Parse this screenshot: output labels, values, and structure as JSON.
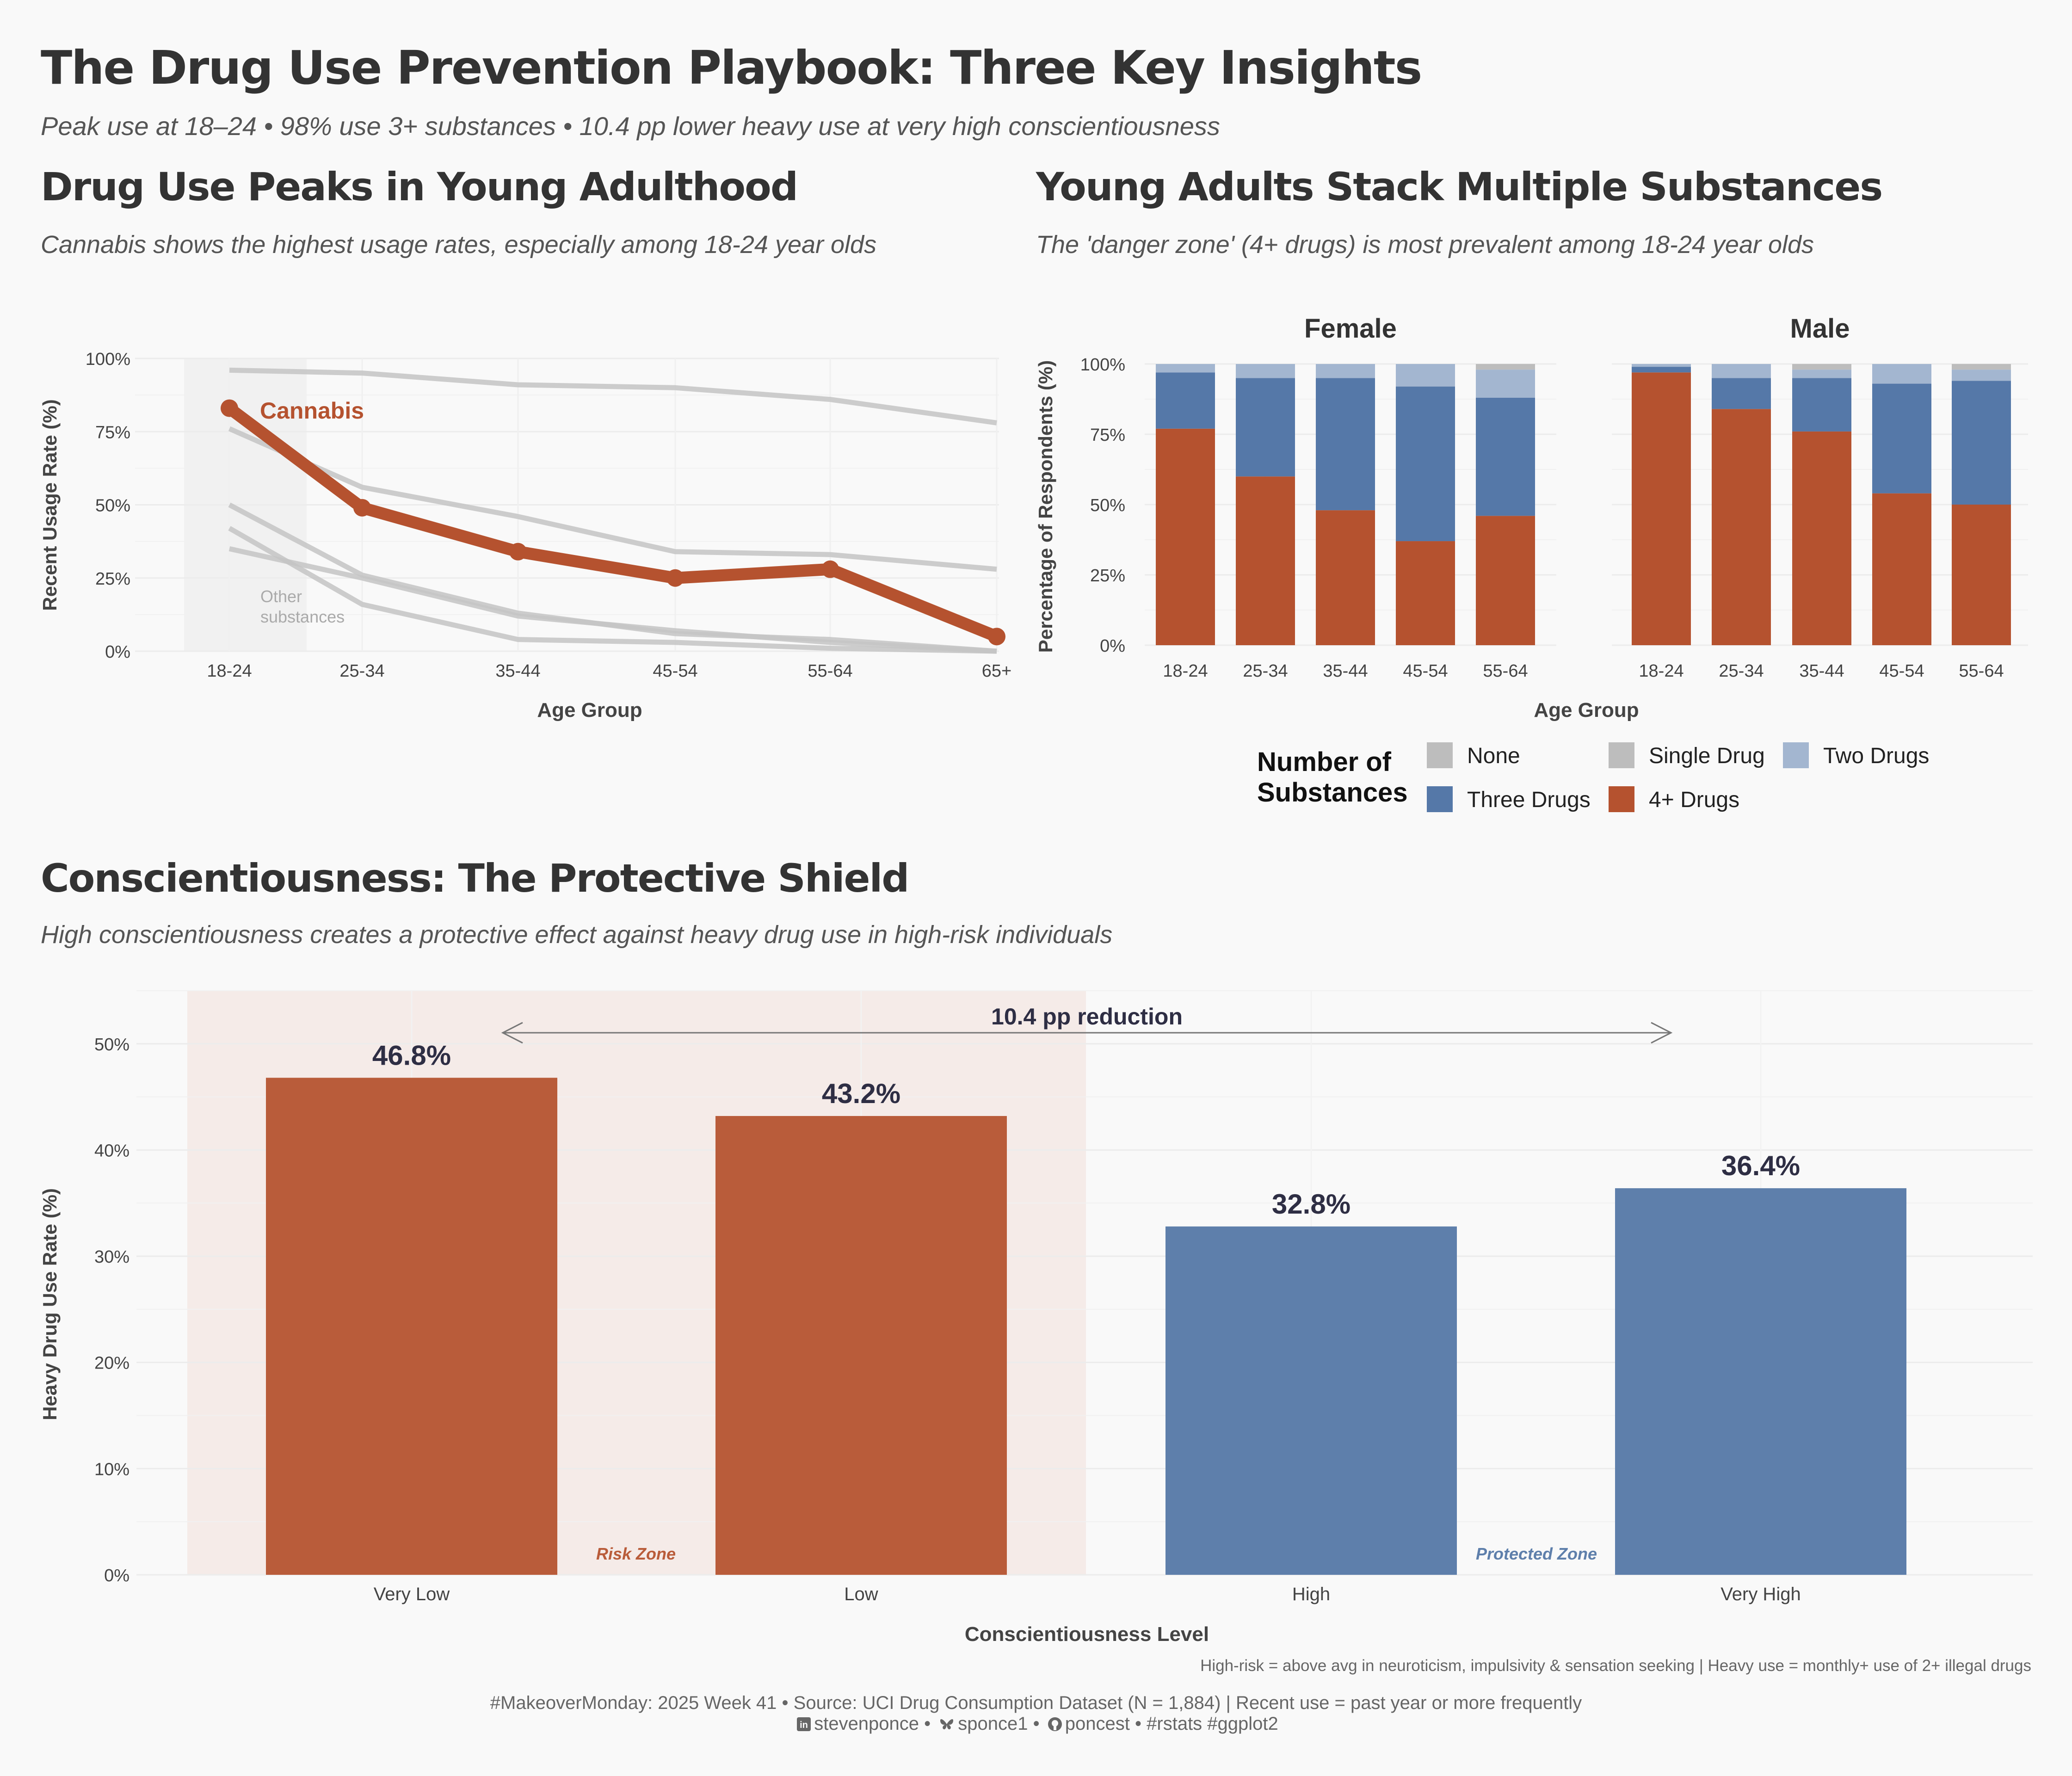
{
  "header": {
    "title": "The Drug Use Prevention Playbook: Three Key Insights",
    "subtitle": "Peak use at 18–24 • 98% use 3+ substances • 10.4 pp lower heavy use at very high conscientiousness"
  },
  "panel1": {
    "title": "Drug Use Peaks in Young Adulthood",
    "subtitle": "Cannabis shows the highest usage rates, especially among 18-24 year olds"
  },
  "panel2": {
    "title": "Young Adults Stack Multiple Substances",
    "subtitle": "The 'danger zone' (4+ drugs) is most prevalent among 18-24 year olds"
  },
  "panel3": {
    "title": "Conscientiousness: The Protective Shield",
    "subtitle": "High conscientiousness creates a protective effect against heavy drug use in high-risk individuals"
  },
  "legend": {
    "title": "Number of\nSubstances",
    "items": [
      {
        "label": "None",
        "color": "#bdbdbd"
      },
      {
        "label": "Single Drug",
        "color": "#bdbdbd"
      },
      {
        "label": "Two Drugs",
        "color": "#a3b6d0"
      },
      {
        "label": "Three Drugs",
        "color": "#5578a8"
      },
      {
        "label": "4+ Drugs",
        "color": "#b5522f"
      }
    ]
  },
  "footer": {
    "note": "High-risk = above avg in neuroticism, impulsivity & sensation seeking | Heavy use = monthly+ use of 2+ illegal drugs",
    "line1": "#MakeoverMonday: 2025 Week 41 • Source: UCI Drug Consumption Dataset (N = 1,884) | Recent use = past year or more frequently",
    "linkedin": "stevenponce",
    "bluesky": "sponce1",
    "github": "poncest",
    "tags": "#rstats #ggplot2"
  },
  "chart_data": [
    {
      "type": "line",
      "xlabel": "Age Group",
      "ylabel": "Recent Usage Rate (%)",
      "ylim": [
        0,
        100
      ],
      "yticks": [
        "0%",
        "25%",
        "50%",
        "75%",
        "100%"
      ],
      "categories": [
        "18-24",
        "25-34",
        "35-44",
        "45-54",
        "55-64",
        "65+"
      ],
      "highlight": {
        "name": "Cannabis",
        "color": "#b5522f",
        "values": [
          83,
          49,
          34,
          25,
          28,
          5
        ]
      },
      "other_label": "Other\nsubstances",
      "other_series": [
        [
          96,
          95,
          91,
          90,
          86,
          78
        ],
        [
          76,
          56,
          46,
          34,
          33,
          28
        ],
        [
          50,
          26,
          13,
          6,
          4,
          0
        ],
        [
          42,
          16,
          4,
          3,
          1,
          0
        ],
        [
          35,
          25,
          12,
          7,
          3,
          0
        ]
      ],
      "grid": true
    },
    {
      "type": "bar",
      "stacked": true,
      "xlabel": "Age Group",
      "ylabel": "Percentage of Respondents (%)",
      "ylim": [
        0,
        100
      ],
      "yticks": [
        "0%",
        "25%",
        "50%",
        "75%",
        "100%"
      ],
      "categories": [
        "18-24",
        "25-34",
        "35-44",
        "45-54",
        "55-64"
      ],
      "facets": [
        {
          "name": "Female",
          "series": [
            {
              "name": "4+ Drugs",
              "values": [
                77,
                60,
                48,
                37,
                46
              ]
            },
            {
              "name": "Three Drugs",
              "values": [
                20,
                35,
                47,
                55,
                42
              ]
            },
            {
              "name": "Two Drugs",
              "values": [
                3,
                5,
                5,
                8,
                10
              ]
            },
            {
              "name": "Single Drug",
              "values": [
                0,
                0,
                0,
                0,
                2
              ]
            },
            {
              "name": "None",
              "values": [
                0,
                0,
                0,
                0,
                0
              ]
            }
          ]
        },
        {
          "name": "Male",
          "series": [
            {
              "name": "4+ Drugs",
              "values": [
                97,
                84,
                76,
                54,
                50
              ]
            },
            {
              "name": "Three Drugs",
              "values": [
                2,
                11,
                19,
                39,
                44
              ]
            },
            {
              "name": "Two Drugs",
              "values": [
                1,
                5,
                3,
                7,
                4
              ]
            },
            {
              "name": "Single Drug",
              "values": [
                0,
                0,
                2,
                0,
                2
              ]
            },
            {
              "name": "None",
              "values": [
                0,
                0,
                0,
                0,
                0
              ]
            }
          ]
        }
      ],
      "legend_position": "bottom",
      "grid": true
    },
    {
      "type": "bar",
      "xlabel": "Conscientiousness Level",
      "ylabel": "Heavy Drug Use Rate (%)",
      "ylim": [
        0,
        55
      ],
      "yticks": [
        "0%",
        "10%",
        "20%",
        "30%",
        "40%",
        "50%"
      ],
      "categories": [
        "Very Low",
        "Low",
        "High",
        "Very High"
      ],
      "values": [
        46.8,
        43.2,
        32.8,
        36.4
      ],
      "value_labels": [
        "46.8%",
        "43.2%",
        "32.8%",
        "36.4%"
      ],
      "colors": [
        "#b95c3a",
        "#b95c3a",
        "#5e7fab",
        "#5e7fab"
      ],
      "annotation": "10.4 pp reduction",
      "risk_zone_label": "Risk Zone",
      "protected_zone_label": "Protected Zone",
      "grid": true
    }
  ]
}
